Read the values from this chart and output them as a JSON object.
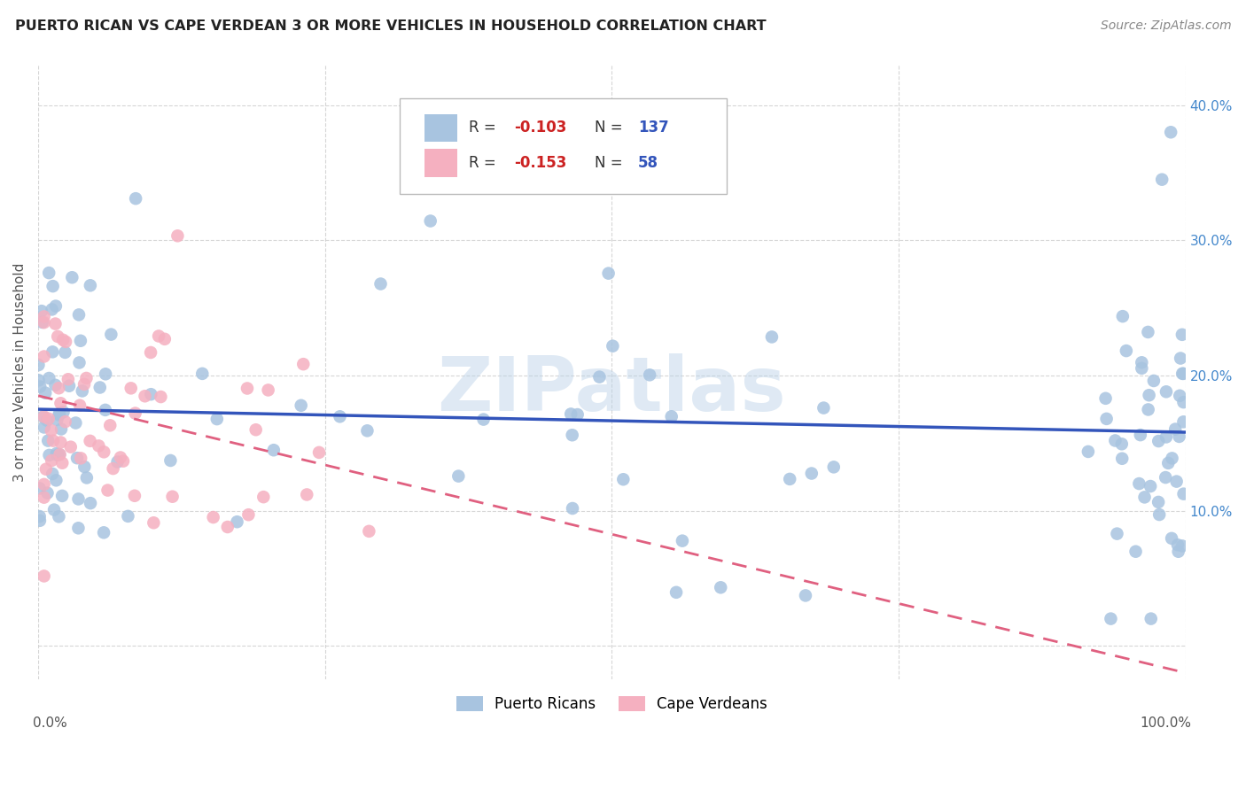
{
  "title": "PUERTO RICAN VS CAPE VERDEAN 3 OR MORE VEHICLES IN HOUSEHOLD CORRELATION CHART",
  "source": "Source: ZipAtlas.com",
  "ylabel": "3 or more Vehicles in Household",
  "pr_R": -0.103,
  "cv_R": -0.153,
  "pr_N": 137,
  "cv_N": 58,
  "pr_color": "#a8c4e0",
  "cv_color": "#f5b0c0",
  "pr_line_color": "#3355bb",
  "cv_line_color": "#e06080",
  "pr_line_x0": 0.0,
  "pr_line_x1": 1.0,
  "pr_line_y0": 0.175,
  "pr_line_y1": 0.158,
  "cv_line_x0": 0.0,
  "cv_line_x1": 1.0,
  "cv_line_y0": 0.185,
  "cv_line_y1": -0.02,
  "xlim": [
    0.0,
    1.0
  ],
  "ylim": [
    -0.025,
    0.43
  ],
  "ytick_vals": [
    0.0,
    0.1,
    0.2,
    0.3,
    0.4
  ],
  "ytick_right_labels": [
    "",
    "10.0%",
    "20.0%",
    "30.0%",
    "40.0%"
  ],
  "watermark": "ZIPatlas",
  "background_color": "#ffffff",
  "grid_color": "#cccccc",
  "title_color": "#222222",
  "source_color": "#888888",
  "axis_label_color": "#555555",
  "right_yaxis_color": "#4488cc",
  "legend_pr_R": "R = -0.103",
  "legend_pr_N": "N = 137",
  "legend_cv_R": "R = -0.153",
  "legend_cv_N": "N =  58"
}
